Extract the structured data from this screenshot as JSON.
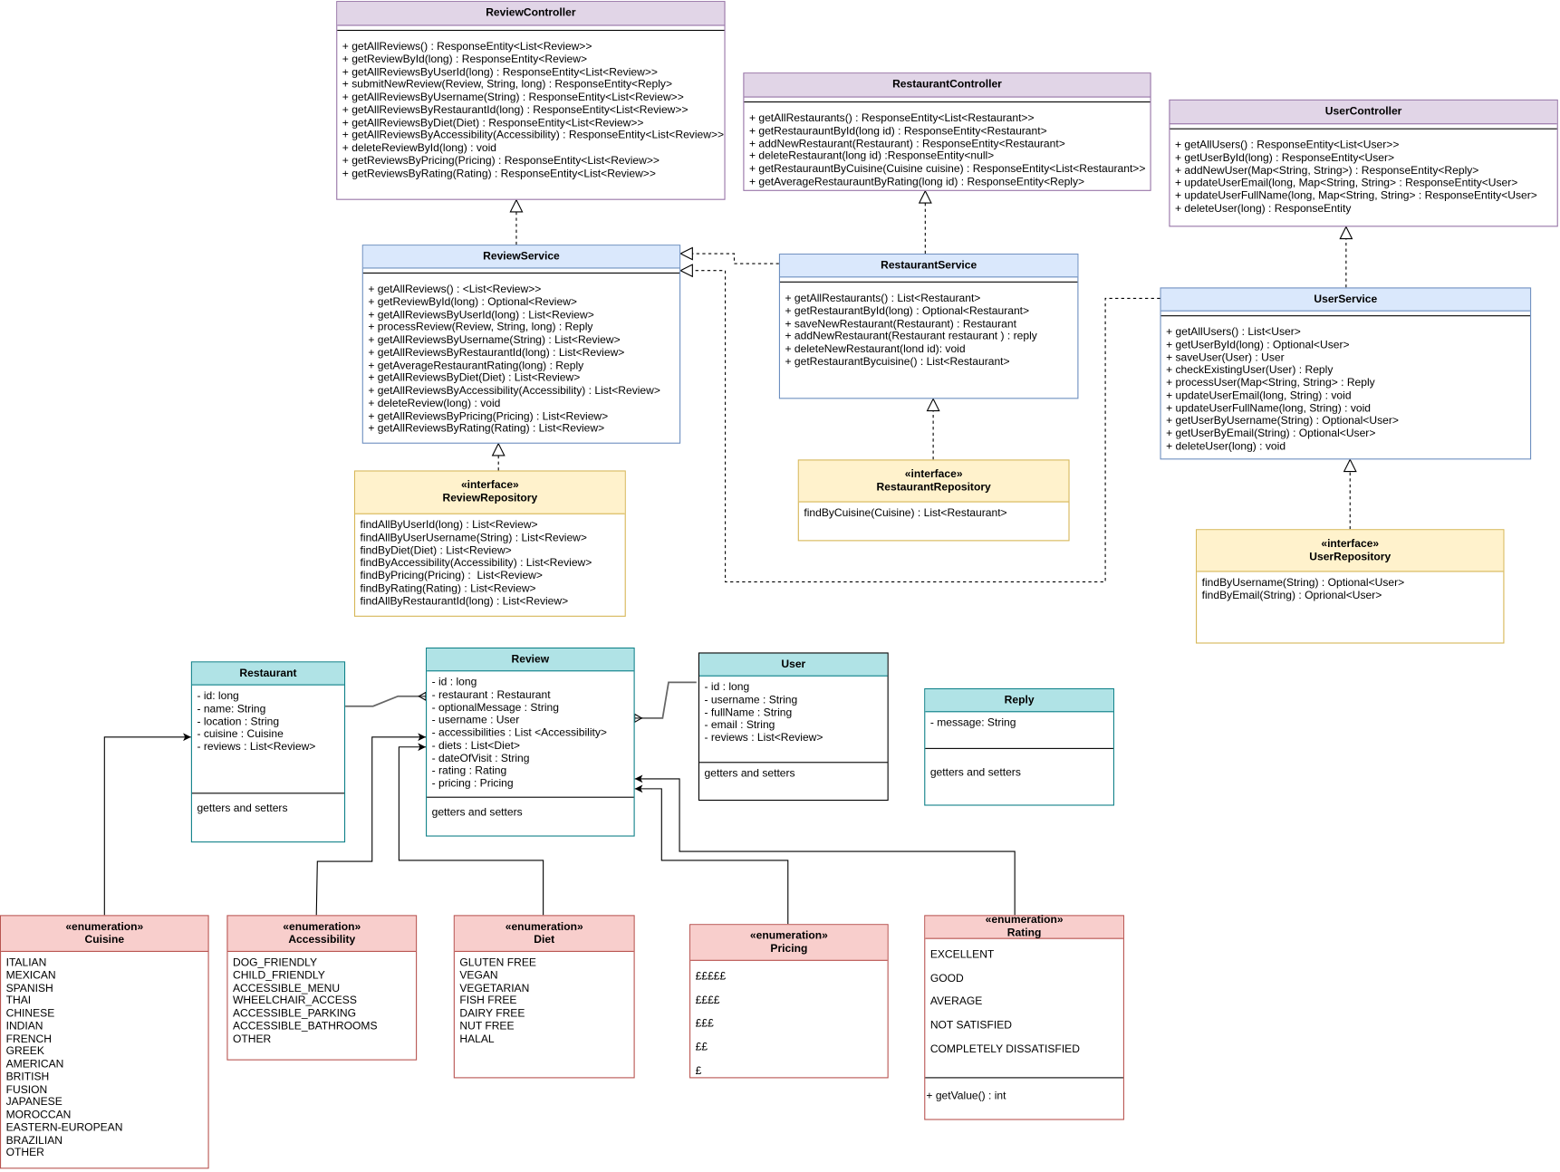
{
  "colors": {
    "controller_fill": "#e1d5e7",
    "controller_border": "#9673a6",
    "service_fill": "#dae8fc",
    "service_border": "#6c8ebf",
    "repository_fill": "#fff2cc",
    "repository_border": "#d6b656",
    "entity_fill": "#b0e3e6",
    "entity_border": "#0e8088",
    "enum_fill": "#f8cecc",
    "enum_border": "#b85450"
  },
  "classes": [
    {
      "id": "ReviewController",
      "kind": "controller",
      "name": "ReviewController",
      "attributes": [],
      "methods": [
        "+ getAllReviews() : ResponseEntity<List<Review>>",
        "+ getReviewById(long) : ResponseEntity<Review>",
        "+ getAllReviewsByUserId(long) : ResponseEntity<List<Review>>",
        "+ submitNewReview(Review, String, long) : ResponseEntity<Reply>",
        "+ getAllReviewsByUsername(String) : ResponseEntity<List<Review>>",
        "+ getAllReviewsByRestaurantId(long) : ResponseEntity<List<Review>>",
        "+ getAllReviewsByDiet(Diet) : ResponseEntity<List<Review>>",
        "+ getAllReviewsByAccessibility(Accessibility) : ResponseEntity<List<Review>>",
        "+ deleteReviewById(long) : void",
        "+ getReviewsByPricing(Pricing) : ResponseEntity<List<Review>>",
        "+ getReviewsByRating(Rating) : ResponseEntity<List<Review>>"
      ]
    },
    {
      "id": "RestaurantController",
      "kind": "controller",
      "name": "RestaurantController",
      "attributes": [],
      "methods": [
        "+ getAllRestaurants() : ResponseEntity<List<Restaurant>>",
        "+ getRestaurauntById(long id) : ResponseEntity<Restaurant>",
        "+ addNewRestaurant(Restaurant) : ResponseEntity<Restaurant>",
        "+ deleteRestaurant(long id) :ResponseEntity<null>",
        "+ getRestaurauntByCuisine(Cuisine cuisine) : ResponseEntity<List<Restaurant>>",
        "+ getAverageRestaurauntByRating(long id) : ResponseEntity<Reply>"
      ]
    },
    {
      "id": "UserController",
      "kind": "controller",
      "name": "UserController",
      "attributes": [],
      "methods": [
        "+ getAllUsers() : ResponseEntity<List<User>>",
        "+ getUserById(long) : ResponseEntity<User>",
        "+ addNewUser(Map<String, String>) : ResponseEntity<Reply>",
        "+ updateUserEmail(long, Map<String, String> : ResponseEntity<User>",
        "+ updateUserFullName(long, Map<String, String> : ResponseEntity<User>",
        "+ deleteUser(long) : ResponseEntity"
      ]
    },
    {
      "id": "ReviewService",
      "kind": "service",
      "name": "ReviewService",
      "attributes": [],
      "methods": [
        "+ getAllReviews() : <List<Review>>",
        "+ getReviewById(long) : Optional<Review>",
        "+ getAllReviewsByUserId(long) : List<Review>",
        "+ processReview(Review, String, long) : Reply",
        "+ getAllReviewsByUsername(String) : List<Review>",
        "+ getAllReviewsByRestaurantId(long) : List<Review>",
        "+ getAverageRestaurantRating(long) : Reply",
        "+ getAllReviewsByDiet(Diet) : List<Review>",
        "+ getAllReviewsByAccessibility(Accessibility) : List<Review>",
        "+ deleteReview(long) : void",
        "+ getAllReviewsByPricing(Pricing) : List<Review>",
        "+ getAllReviewsByRating(Rating) : List<Review>"
      ]
    },
    {
      "id": "RestaurantService",
      "kind": "service",
      "name": "RestaurantService",
      "attributes": [],
      "methods": [
        "+ getAllRestaurants() : List<Restaurant>",
        "+ getRestaurantById(long) : Optional<Restaurant>",
        "+ saveNewRestaurant(Restaurant) : Restaurant",
        "+ addNewRestaurant(Restaurant restaurant ) : reply",
        "+ deleteNewRestaurant(lond id): void",
        "+ getRestaurantBycuisine() : List<Restaurant>"
      ]
    },
    {
      "id": "UserService",
      "kind": "service",
      "name": "UserService",
      "attributes": [],
      "methods": [
        "+ getAllUsers() : List<User>",
        "+ getUserById(long) : Optional<User>",
        "+ saveUser(User) : User",
        "+ checkExistingUser(User) : Reply",
        "+ processUser(Map<String, String> : Reply",
        "+ updateUserEmail(long, String) : void",
        "+ updateUserFullName(long, String) : void",
        "+ getUserByUsername(String) : Optional<User>",
        "+ getUserByEmail(String) : Optional<User>",
        "+ deleteUser(long) : void"
      ]
    },
    {
      "id": "ReviewRepository",
      "kind": "repository",
      "stereotype": "«interface»",
      "name": "ReviewRepository",
      "attributes": [],
      "methods": [
        "findAllByUserId(long) : List<Review>",
        "findAllByUserUsername(String) : List<Review>",
        "findByDiet(Diet) : List<Review>",
        "findByAccessibility(Accessibility) : List<Review>",
        "findByPricing(Pricing) :  List<Review>",
        "findByRating(Rating) : List<Review>",
        "findAllByRestaurantId(long) : List<Review>"
      ]
    },
    {
      "id": "RestaurantRepository",
      "kind": "repository",
      "stereotype": "«interface»",
      "name": "RestaurantRepository",
      "attributes": [],
      "methods": [
        "findByCuisine(Cuisine) : List<Restaurant>"
      ]
    },
    {
      "id": "UserRepository",
      "kind": "repository",
      "stereotype": "«interface»",
      "name": "UserRepository",
      "attributes": [],
      "methods": [
        "findByUsername(String) : Optional<User>",
        "findByEmail(String) : Oprional<User>"
      ]
    },
    {
      "id": "Restaurant",
      "kind": "entity",
      "name": "Restaurant",
      "attributes": [
        "- id: long",
        "- name: String",
        "- location : String",
        "- cuisine : Cuisine",
        "- reviews : List<Review>"
      ],
      "methods": [
        "getters and setters"
      ]
    },
    {
      "id": "Review",
      "kind": "entity",
      "name": "Review",
      "attributes": [
        "- id : long",
        "- restaurant : Restaurant",
        "- optionalMessage : String",
        "- username : User",
        "- accessibilities : List <Accessibility>",
        "- diets : List<Diet>",
        "- dateOfVisit : String",
        "- rating : Rating",
        "- pricing : Pricing"
      ],
      "methods": [
        "getters and setters"
      ]
    },
    {
      "id": "User",
      "kind": "entity",
      "name": "User",
      "attributes": [
        "- id : long",
        "- username : String",
        "- fullName : String",
        "- email : String",
        "- reviews : List<Review>"
      ],
      "methods": [
        "getters and setters"
      ]
    },
    {
      "id": "Reply",
      "kind": "entity",
      "name": "Reply",
      "attributes": [
        "- message: String"
      ],
      "methods": [
        "getters and setters"
      ]
    },
    {
      "id": "Cuisine",
      "kind": "enum",
      "stereotype": "«enumeration»",
      "name": "Cuisine",
      "attributes": [
        "ITALIAN",
        "MEXICAN",
        "SPANISH",
        "THAI",
        "CHINESE",
        "INDIAN",
        "FRENCH",
        "GREEK",
        "AMERICAN",
        "BRITISH",
        "FUSION",
        "JAPANESE",
        "MOROCCAN",
        "EASTERN-EUROPEAN",
        "BRAZILIAN",
        "OTHER"
      ],
      "methods": []
    },
    {
      "id": "Accessibility",
      "kind": "enum",
      "stereotype": "«enumeration»",
      "name": "Accessibility",
      "attributes": [
        "DOG_FRIENDLY",
        "CHILD_FRIENDLY",
        "ACCESSIBLE_MENU",
        "WHEELCHAIR_ACCESS",
        "ACCESSIBLE_PARKING",
        "ACCESSIBLE_BATHROOMS",
        "OTHER"
      ],
      "methods": []
    },
    {
      "id": "Diet",
      "kind": "enum",
      "stereotype": "«enumeration»",
      "name": "Diet",
      "attributes": [
        "GLUTEN FREE",
        "VEGAN",
        "VEGETARIAN",
        "FISH FREE",
        "DAIRY FREE",
        "NUT FREE",
        "HALAL"
      ],
      "methods": []
    },
    {
      "id": "Pricing",
      "kind": "enum",
      "stereotype": "«enumeration»",
      "name": "Pricing",
      "attributes": [
        "£££££",
        "££££",
        "£££",
        "££",
        "£"
      ],
      "methods": []
    },
    {
      "id": "Rating",
      "kind": "enum",
      "stereotype": "«enumeration»",
      "name": "Rating",
      "attributes": [
        "EXCELLENT",
        "GOOD",
        "AVERAGE",
        "NOT SATISFIED",
        "COMPLETELY DISSATISFIED"
      ],
      "methods": [
        "+ getValue() : int"
      ]
    }
  ],
  "relations": [
    {
      "type": "realization",
      "from": "ReviewService",
      "to": "ReviewController"
    },
    {
      "type": "realization",
      "from": "RestaurantService",
      "to": "RestaurantController"
    },
    {
      "type": "realization",
      "from": "UserService",
      "to": "UserController"
    },
    {
      "type": "realization",
      "from": "ReviewRepository",
      "to": "ReviewService"
    },
    {
      "type": "realization",
      "from": "RestaurantRepository",
      "to": "RestaurantService"
    },
    {
      "type": "realization",
      "from": "UserRepository",
      "to": "UserService"
    },
    {
      "type": "realization",
      "from": "RestaurantService",
      "to": "ReviewService"
    },
    {
      "type": "realization",
      "from": "UserService",
      "to": "ReviewService"
    },
    {
      "type": "one-to-many",
      "from": "Restaurant",
      "to": "Review"
    },
    {
      "type": "one-to-many",
      "from": "User",
      "to": "Review"
    },
    {
      "type": "association",
      "from": "Cuisine",
      "to": "Restaurant"
    },
    {
      "type": "association",
      "from": "Accessibility",
      "to": "Review"
    },
    {
      "type": "association",
      "from": "Diet",
      "to": "Review"
    },
    {
      "type": "association",
      "from": "Pricing",
      "to": "Review"
    },
    {
      "type": "association",
      "from": "Rating",
      "to": "Review"
    }
  ]
}
